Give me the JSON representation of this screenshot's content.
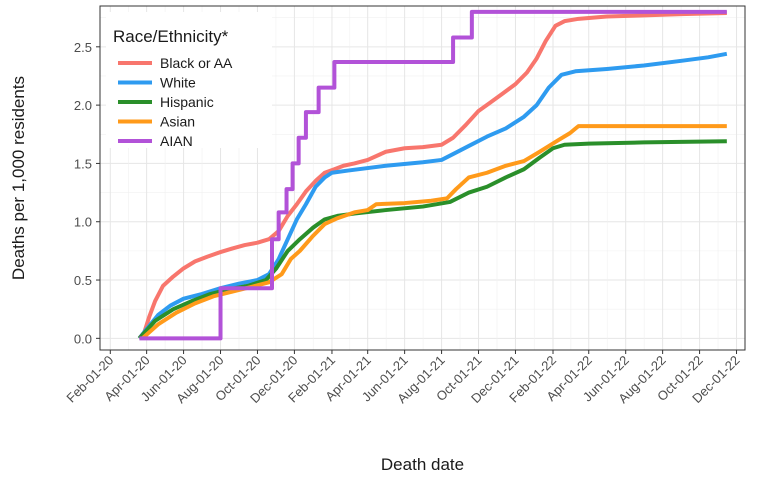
{
  "chart_data": {
    "type": "line",
    "title": "",
    "xlabel": "Death date",
    "ylabel": "Deaths per 1,000 residents",
    "x_type": "date",
    "xlim": [
      "2020-01-15",
      "2022-12-15"
    ],
    "ylim": [
      -0.1,
      2.85
    ],
    "x_ticks": [
      {
        "value": "2020-02-01",
        "label": "Feb-01-20"
      },
      {
        "value": "2020-04-01",
        "label": "Apr-01-20"
      },
      {
        "value": "2020-06-01",
        "label": "Jun-01-20"
      },
      {
        "value": "2020-08-01",
        "label": "Aug-01-20"
      },
      {
        "value": "2020-10-01",
        "label": "Oct-01-20"
      },
      {
        "value": "2020-12-01",
        "label": "Dec-01-20"
      },
      {
        "value": "2021-02-01",
        "label": "Feb-01-21"
      },
      {
        "value": "2021-04-01",
        "label": "Apr-01-21"
      },
      {
        "value": "2021-06-01",
        "label": "Jun-01-21"
      },
      {
        "value": "2021-08-01",
        "label": "Aug-01-21"
      },
      {
        "value": "2021-10-01",
        "label": "Oct-01-21"
      },
      {
        "value": "2021-12-01",
        "label": "Dec-01-21"
      },
      {
        "value": "2022-02-01",
        "label": "Feb-01-22"
      },
      {
        "value": "2022-04-01",
        "label": "Apr-01-22"
      },
      {
        "value": "2022-06-01",
        "label": "Jun-01-22"
      },
      {
        "value": "2022-08-01",
        "label": "Aug-01-22"
      },
      {
        "value": "2022-10-01",
        "label": "Oct-01-22"
      },
      {
        "value": "2022-12-01",
        "label": "Dec-01-22"
      }
    ],
    "y_ticks": [
      {
        "value": 0.0,
        "label": "0.0"
      },
      {
        "value": 0.5,
        "label": "0.5"
      },
      {
        "value": 1.0,
        "label": "1.0"
      },
      {
        "value": 1.5,
        "label": "1.5"
      },
      {
        "value": 2.0,
        "label": "2.0"
      },
      {
        "value": 2.5,
        "label": "2.5"
      }
    ],
    "grid": true,
    "legend": {
      "title": "Race/Ethnicity*",
      "position": "top-left"
    },
    "series": [
      {
        "name": "Black or AA",
        "color": "#F8766D",
        "step": false,
        "points": [
          [
            "2020-03-20",
            0.0
          ],
          [
            "2020-03-28",
            0.05
          ],
          [
            "2020-04-05",
            0.18
          ],
          [
            "2020-04-15",
            0.32
          ],
          [
            "2020-04-28",
            0.45
          ],
          [
            "2020-05-15",
            0.53
          ],
          [
            "2020-06-01",
            0.6
          ],
          [
            "2020-06-20",
            0.66
          ],
          [
            "2020-07-10",
            0.7
          ],
          [
            "2020-08-01",
            0.74
          ],
          [
            "2020-08-20",
            0.77
          ],
          [
            "2020-09-10",
            0.8
          ],
          [
            "2020-10-01",
            0.82
          ],
          [
            "2020-10-20",
            0.85
          ],
          [
            "2020-11-05",
            0.92
          ],
          [
            "2020-11-20",
            1.05
          ],
          [
            "2020-12-05",
            1.15
          ],
          [
            "2020-12-20",
            1.26
          ],
          [
            "2021-01-05",
            1.35
          ],
          [
            "2021-01-20",
            1.42
          ],
          [
            "2021-02-05",
            1.45
          ],
          [
            "2021-02-20",
            1.48
          ],
          [
            "2021-03-10",
            1.5
          ],
          [
            "2021-04-01",
            1.53
          ],
          [
            "2021-05-01",
            1.6
          ],
          [
            "2021-06-01",
            1.63
          ],
          [
            "2021-07-01",
            1.64
          ],
          [
            "2021-08-01",
            1.66
          ],
          [
            "2021-08-20",
            1.72
          ],
          [
            "2021-09-10",
            1.83
          ],
          [
            "2021-10-01",
            1.95
          ],
          [
            "2021-10-20",
            2.02
          ],
          [
            "2021-11-10",
            2.1
          ],
          [
            "2021-12-01",
            2.18
          ],
          [
            "2021-12-20",
            2.28
          ],
          [
            "2022-01-05",
            2.4
          ],
          [
            "2022-01-20",
            2.55
          ],
          [
            "2022-02-05",
            2.68
          ],
          [
            "2022-02-20",
            2.72
          ],
          [
            "2022-03-15",
            2.74
          ],
          [
            "2022-05-01",
            2.76
          ],
          [
            "2022-07-01",
            2.77
          ],
          [
            "2022-09-01",
            2.78
          ],
          [
            "2022-11-15",
            2.79
          ]
        ]
      },
      {
        "name": "White",
        "color": "#2E9BF0",
        "step": false,
        "points": [
          [
            "2020-03-20",
            0.0
          ],
          [
            "2020-04-01",
            0.08
          ],
          [
            "2020-04-20",
            0.2
          ],
          [
            "2020-05-10",
            0.28
          ],
          [
            "2020-06-01",
            0.34
          ],
          [
            "2020-07-01",
            0.38
          ],
          [
            "2020-08-01",
            0.43
          ],
          [
            "2020-09-01",
            0.47
          ],
          [
            "2020-10-01",
            0.5
          ],
          [
            "2020-10-20",
            0.55
          ],
          [
            "2020-11-05",
            0.68
          ],
          [
            "2020-11-20",
            0.85
          ],
          [
            "2020-12-05",
            1.02
          ],
          [
            "2020-12-20",
            1.15
          ],
          [
            "2021-01-05",
            1.3
          ],
          [
            "2021-01-20",
            1.38
          ],
          [
            "2021-02-01",
            1.42
          ],
          [
            "2021-03-01",
            1.44
          ],
          [
            "2021-05-01",
            1.48
          ],
          [
            "2021-07-01",
            1.51
          ],
          [
            "2021-08-01",
            1.53
          ],
          [
            "2021-08-20",
            1.58
          ],
          [
            "2021-09-15",
            1.65
          ],
          [
            "2021-10-15",
            1.73
          ],
          [
            "2021-11-15",
            1.8
          ],
          [
            "2021-12-15",
            1.9
          ],
          [
            "2022-01-05",
            2.0
          ],
          [
            "2022-01-25",
            2.15
          ],
          [
            "2022-02-15",
            2.26
          ],
          [
            "2022-03-10",
            2.29
          ],
          [
            "2022-05-01",
            2.31
          ],
          [
            "2022-07-01",
            2.34
          ],
          [
            "2022-09-01",
            2.38
          ],
          [
            "2022-10-15",
            2.41
          ],
          [
            "2022-11-15",
            2.44
          ]
        ]
      },
      {
        "name": "Hispanic",
        "color": "#2A8F2A",
        "step": false,
        "points": [
          [
            "2020-03-20",
            0.0
          ],
          [
            "2020-04-15",
            0.15
          ],
          [
            "2020-05-15",
            0.25
          ],
          [
            "2020-06-15",
            0.32
          ],
          [
            "2020-07-15",
            0.38
          ],
          [
            "2020-08-15",
            0.42
          ],
          [
            "2020-09-15",
            0.45
          ],
          [
            "2020-10-15",
            0.5
          ],
          [
            "2020-11-01",
            0.6
          ],
          [
            "2020-11-20",
            0.75
          ],
          [
            "2020-12-10",
            0.85
          ],
          [
            "2021-01-01",
            0.95
          ],
          [
            "2021-01-20",
            1.02
          ],
          [
            "2021-02-10",
            1.05
          ],
          [
            "2021-03-10",
            1.07
          ],
          [
            "2021-05-01",
            1.1
          ],
          [
            "2021-07-01",
            1.13
          ],
          [
            "2021-08-15",
            1.17
          ],
          [
            "2021-09-15",
            1.25
          ],
          [
            "2021-10-15",
            1.3
          ],
          [
            "2021-11-15",
            1.38
          ],
          [
            "2021-12-15",
            1.45
          ],
          [
            "2022-01-10",
            1.55
          ],
          [
            "2022-02-01",
            1.63
          ],
          [
            "2022-02-20",
            1.66
          ],
          [
            "2022-04-01",
            1.67
          ],
          [
            "2022-07-01",
            1.68
          ],
          [
            "2022-11-15",
            1.69
          ]
        ]
      },
      {
        "name": "Asian",
        "color": "#FF9A1A",
        "step": false,
        "points": [
          [
            "2020-03-25",
            0.0
          ],
          [
            "2020-04-20",
            0.12
          ],
          [
            "2020-05-20",
            0.22
          ],
          [
            "2020-06-20",
            0.3
          ],
          [
            "2020-07-20",
            0.36
          ],
          [
            "2020-08-20",
            0.4
          ],
          [
            "2020-09-20",
            0.44
          ],
          [
            "2020-10-20",
            0.48
          ],
          [
            "2020-11-10",
            0.55
          ],
          [
            "2020-11-25",
            0.68
          ],
          [
            "2020-12-10",
            0.75
          ],
          [
            "2021-01-01",
            0.88
          ],
          [
            "2021-01-20",
            0.98
          ],
          [
            "2021-02-10",
            1.03
          ],
          [
            "2021-03-10",
            1.08
          ],
          [
            "2021-04-01",
            1.1
          ],
          [
            "2021-04-15",
            1.15
          ],
          [
            "2021-06-01",
            1.16
          ],
          [
            "2021-07-15",
            1.18
          ],
          [
            "2021-08-10",
            1.2
          ],
          [
            "2021-08-25",
            1.28
          ],
          [
            "2021-09-15",
            1.38
          ],
          [
            "2021-10-15",
            1.42
          ],
          [
            "2021-11-15",
            1.48
          ],
          [
            "2021-12-15",
            1.52
          ],
          [
            "2022-01-10",
            1.6
          ],
          [
            "2022-02-10",
            1.7
          ],
          [
            "2022-03-01",
            1.76
          ],
          [
            "2022-03-15",
            1.82
          ],
          [
            "2022-06-01",
            1.82
          ],
          [
            "2022-11-15",
            1.82
          ]
        ]
      },
      {
        "name": "AIAN",
        "color": "#B252D8",
        "step": true,
        "points": [
          [
            "2020-03-20",
            0.0
          ],
          [
            "2020-08-01",
            0.43
          ],
          [
            "2020-10-25",
            0.85
          ],
          [
            "2020-11-05",
            1.08
          ],
          [
            "2020-11-18",
            1.28
          ],
          [
            "2020-11-28",
            1.5
          ],
          [
            "2020-12-08",
            1.72
          ],
          [
            "2020-12-20",
            1.94
          ],
          [
            "2021-01-10",
            2.15
          ],
          [
            "2021-02-05",
            2.37
          ],
          [
            "2021-08-20",
            2.58
          ],
          [
            "2021-09-20",
            2.8
          ],
          [
            "2022-11-15",
            2.8
          ]
        ]
      }
    ]
  }
}
